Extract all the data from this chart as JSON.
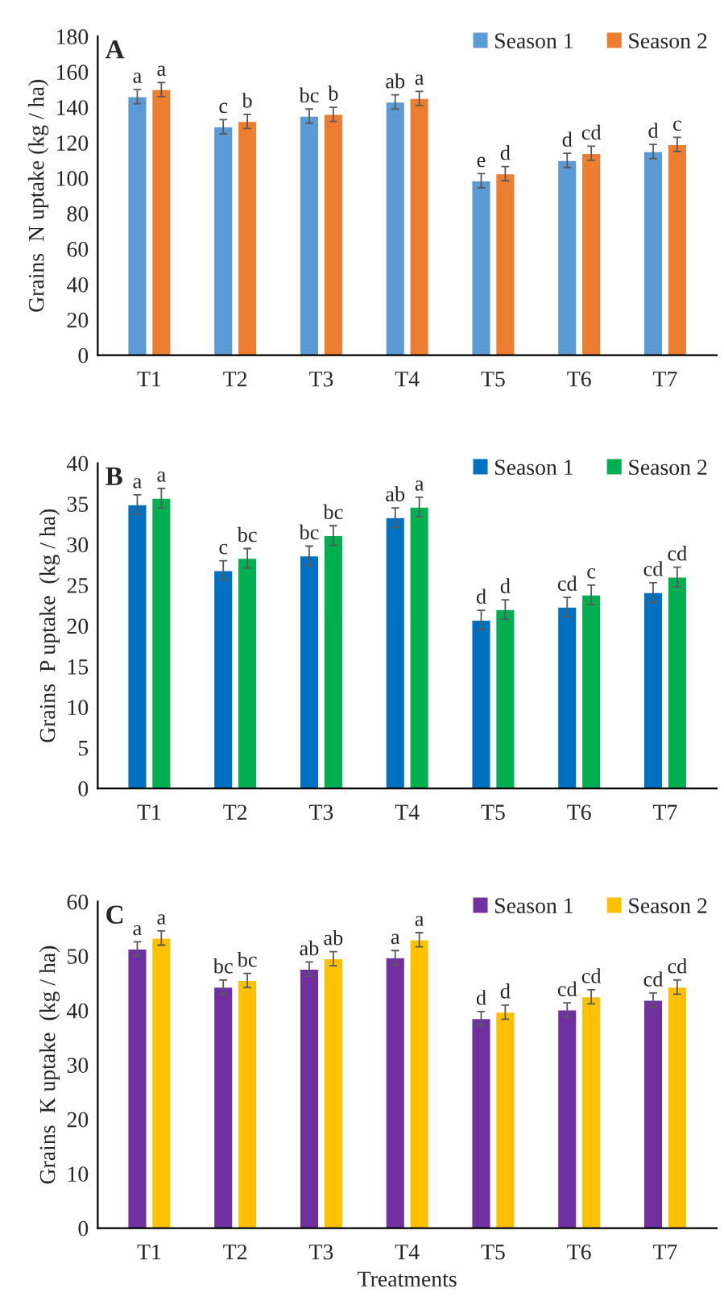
{
  "chart_data": [
    {
      "type": "bar",
      "title": "A",
      "ylabel": "Grains  N uptake (kg / ha)",
      "categories": [
        "T1",
        "T2",
        "T3",
        "T4",
        "T5",
        "T6",
        "T7"
      ],
      "ylim": [
        0,
        180
      ],
      "yticks": [
        0,
        20,
        40,
        60,
        80,
        100,
        120,
        140,
        160,
        180
      ],
      "legend": "top right",
      "grid": false,
      "series": [
        {
          "name": "Season 1",
          "color": "#5b9bd5",
          "values": [
            146,
            129,
            135,
            143,
            98.5,
            110,
            115
          ],
          "errors": [
            4,
            4,
            4,
            4,
            4,
            4,
            4
          ],
          "value_labels": [
            "a",
            "c",
            "bc",
            "ab",
            "e",
            "d",
            "d"
          ]
        },
        {
          "name": "Season 2",
          "color": "#ed7d31",
          "values": [
            150,
            132,
            136,
            145,
            102.5,
            114,
            119
          ],
          "errors": [
            4,
            4,
            4,
            4,
            4,
            4,
            4
          ],
          "value_labels": [
            "a",
            "b",
            "b",
            "a",
            "d",
            "cd",
            "c"
          ]
        }
      ]
    },
    {
      "type": "bar",
      "title": "B",
      "ylabel": "Grains  P uptake  (kg / ha)",
      "categories": [
        "T1",
        "T2",
        "T3",
        "T4",
        "T5",
        "T6",
        "T7"
      ],
      "ylim": [
        0,
        40
      ],
      "yticks": [
        0,
        5,
        10,
        15,
        20,
        25,
        30,
        35,
        40
      ],
      "legend": "top right",
      "grid": false,
      "series": [
        {
          "name": "Season 1",
          "color": "#0070c0",
          "values": [
            34.9,
            26.8,
            28.6,
            33.3,
            20.7,
            22.3,
            24.1
          ],
          "errors": [
            1.2,
            1.2,
            1.2,
            1.2,
            1.2,
            1.2,
            1.2
          ],
          "value_labels": [
            "a",
            "c",
            "bc",
            "ab",
            "d",
            "cd",
            "cd"
          ]
        },
        {
          "name": "Season 2",
          "color": "#00b050",
          "values": [
            35.7,
            28.3,
            31.1,
            34.6,
            22.0,
            23.8,
            26.0
          ],
          "errors": [
            1.2,
            1.2,
            1.2,
            1.2,
            1.2,
            1.2,
            1.2
          ],
          "value_labels": [
            "a",
            "bc",
            "bc",
            "a",
            "d",
            "c",
            "cd"
          ]
        }
      ]
    },
    {
      "type": "bar",
      "title": "C",
      "xlabel": "Treatments",
      "ylabel": "Grains  K uptake  (kg / ha)",
      "categories": [
        "T1",
        "T2",
        "T3",
        "T4",
        "T5",
        "T6",
        "T7"
      ],
      "ylim": [
        0,
        60
      ],
      "yticks": [
        0,
        10,
        20,
        30,
        40,
        50,
        60
      ],
      "legend": "top right",
      "grid": false,
      "series": [
        {
          "name": "Season 1",
          "color": "#7030a0",
          "values": [
            51.3,
            44.3,
            47.6,
            49.7,
            38.5,
            40.1,
            41.9
          ],
          "errors": [
            1.3,
            1.3,
            1.3,
            1.3,
            1.3,
            1.3,
            1.3
          ],
          "value_labels": [
            "a",
            "bc",
            "ab",
            "a",
            "d",
            "cd",
            "cd"
          ]
        },
        {
          "name": "Season 2",
          "color": "#ffc000",
          "values": [
            53.3,
            45.5,
            49.5,
            53.0,
            39.7,
            42.5,
            44.3
          ],
          "errors": [
            1.3,
            1.3,
            1.3,
            1.3,
            1.3,
            1.3,
            1.3
          ],
          "value_labels": [
            "a",
            "bc",
            "ab",
            "a",
            "d",
            "cd",
            "cd"
          ]
        }
      ]
    }
  ]
}
